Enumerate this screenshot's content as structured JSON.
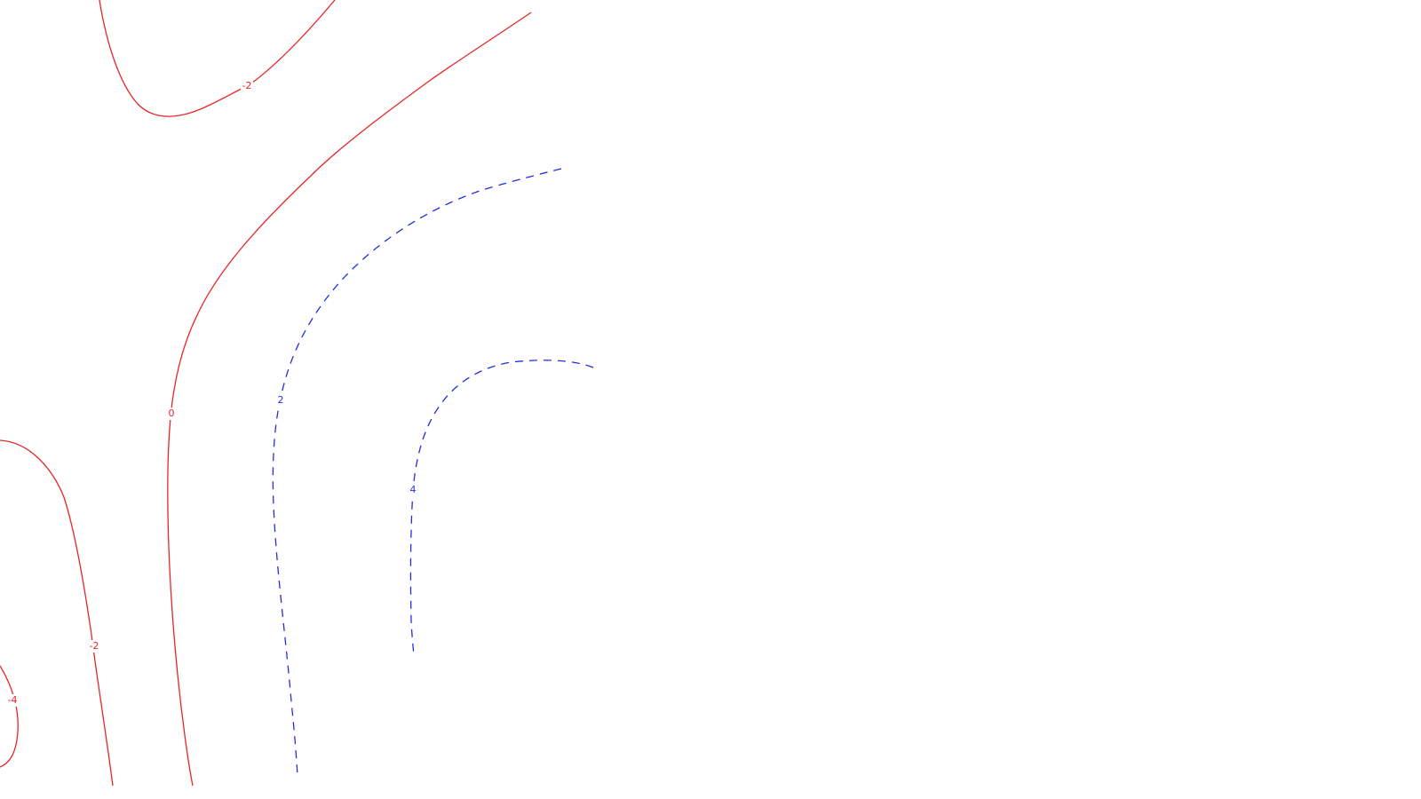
{
  "chart_data": {
    "type": "contour",
    "title": "",
    "xlabel": "",
    "ylabel": "",
    "grid": false,
    "legend": "none",
    "styles": {
      "negative_or_zero": {
        "color": "#e8262a",
        "dash": "solid"
      },
      "positive": {
        "color": "#1f2fe0",
        "dash": "dashed"
      }
    },
    "contours": [
      {
        "level": -2,
        "label": "-2",
        "color": "#e8262a",
        "dashed": false
      },
      {
        "level": 0,
        "label": "0",
        "color": "#e8262a",
        "dashed": false
      },
      {
        "level": 2,
        "label": "2",
        "color": "#1f2fe0",
        "dashed": true
      },
      {
        "level": 4,
        "label": "4",
        "color": "#1f2fe0",
        "dashed": true
      },
      {
        "level": -2,
        "label": "-2",
        "color": "#e8262a",
        "dashed": false
      },
      {
        "level": -4,
        "label": "-4",
        "color": "#e8262a",
        "dashed": false
      }
    ]
  }
}
